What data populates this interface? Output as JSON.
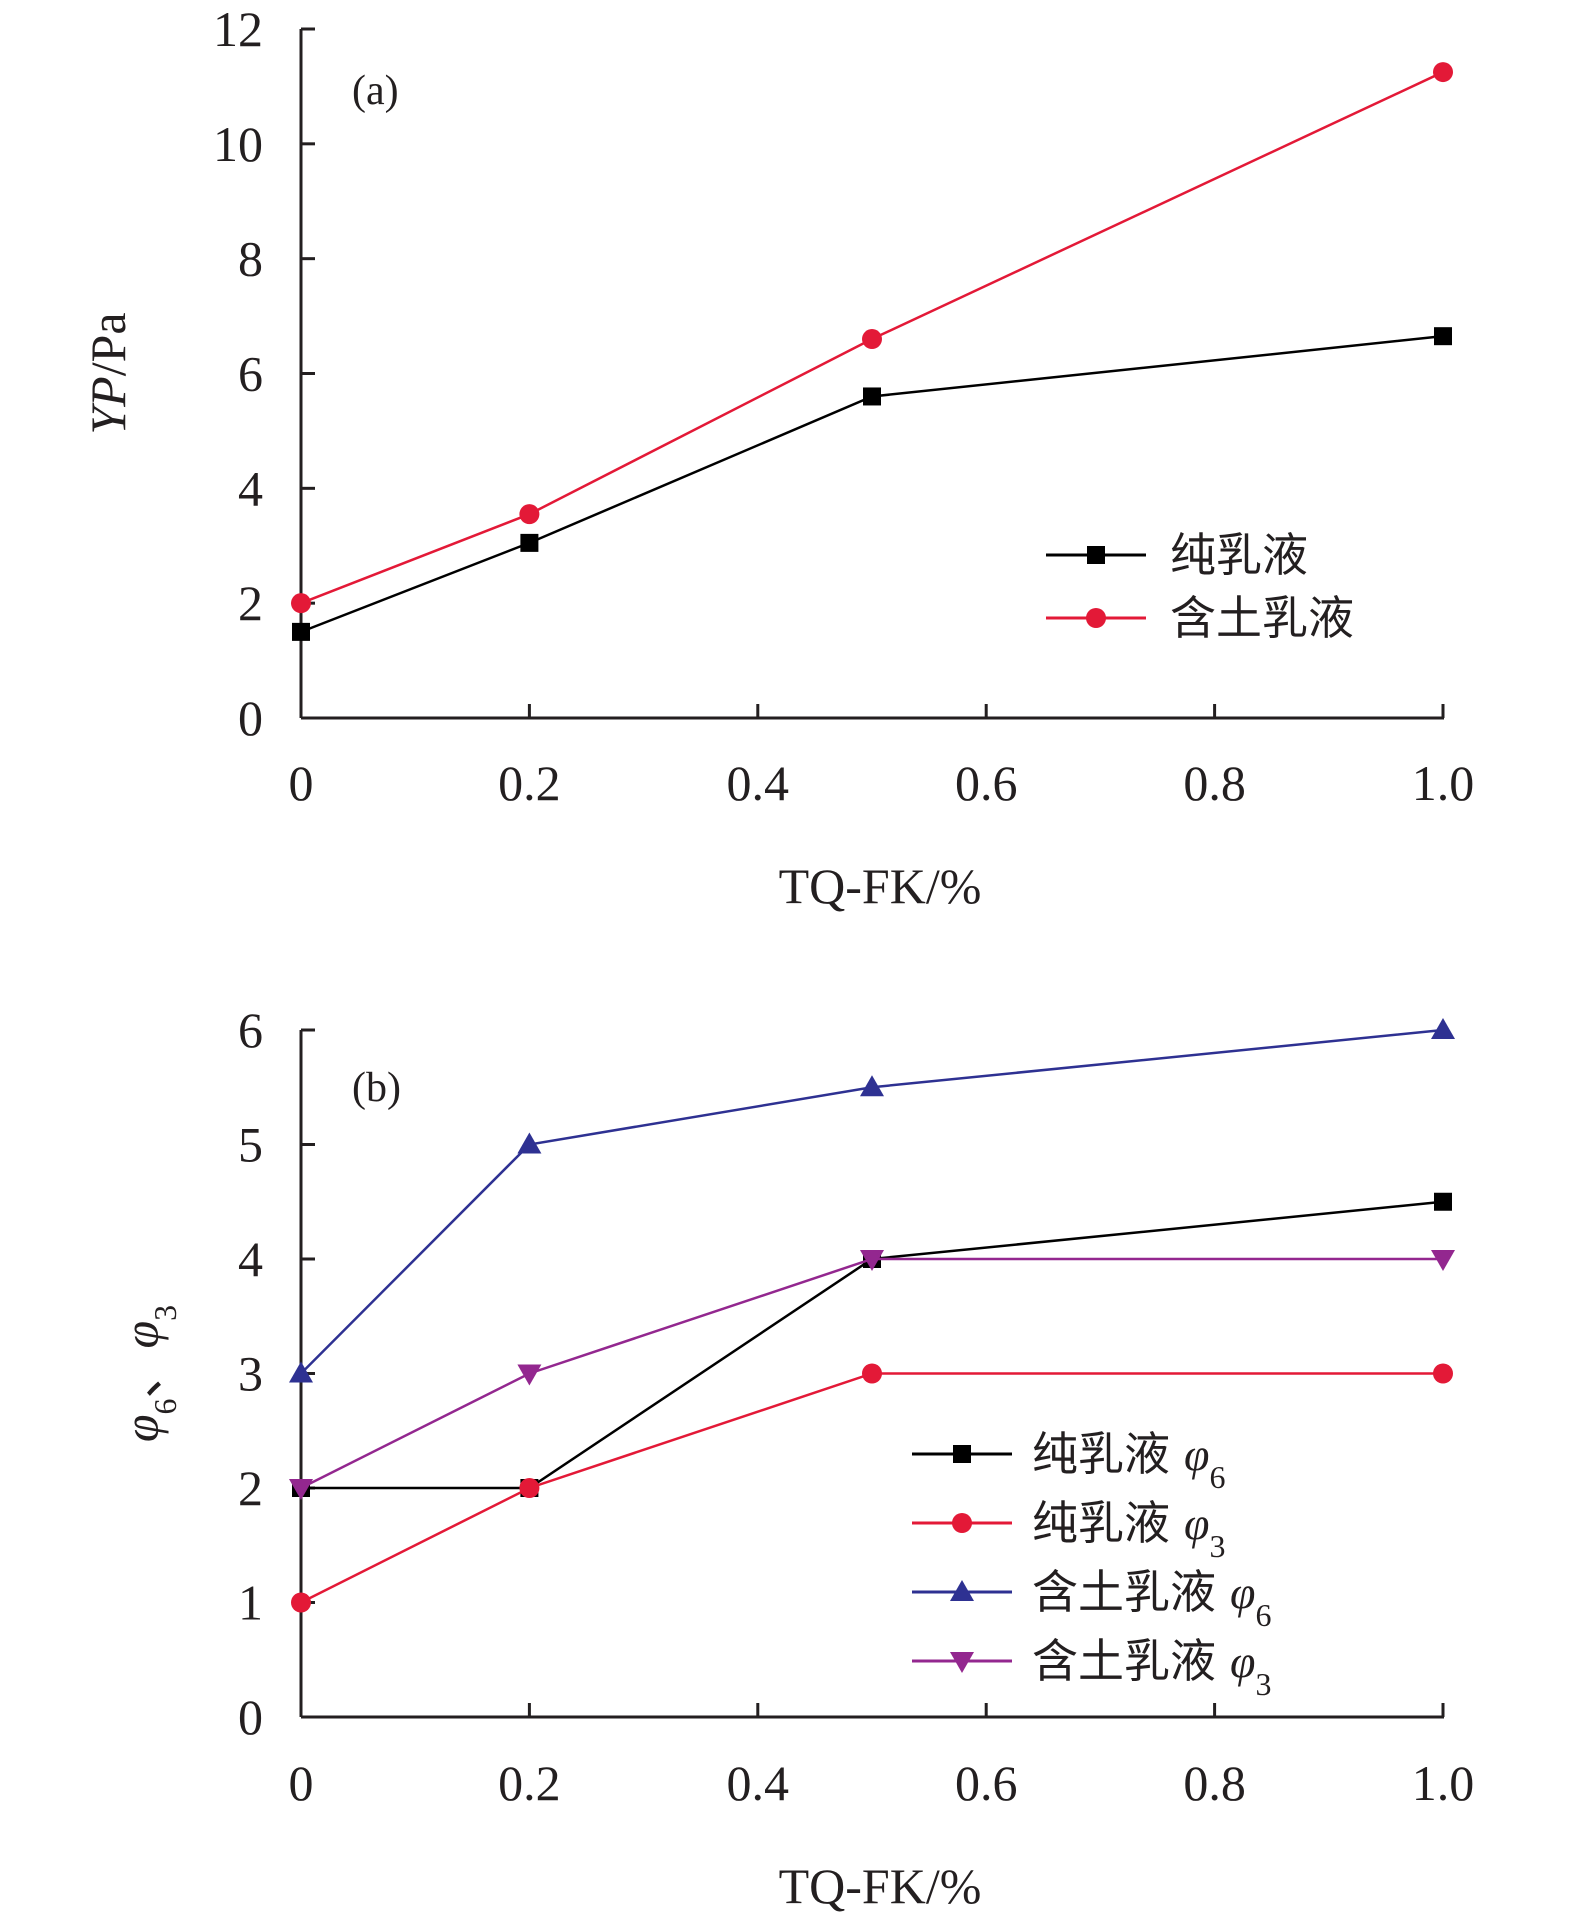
{
  "chart_data": [
    {
      "type": "line",
      "panel": "(a)",
      "xlabel": "TQ-FK/%",
      "ylabel": "YP/Pa",
      "ylabel_italic": "YP",
      "ylabel_unit": "/Pa",
      "xlim": [
        0,
        1.0
      ],
      "ylim": [
        0,
        12
      ],
      "xticks": [
        0,
        0.2,
        0.4,
        0.6,
        0.8,
        1.0
      ],
      "xtick_labels": [
        "0",
        "0.2",
        "0.4",
        "0.6",
        "0.8",
        "1.0"
      ],
      "yticks": [
        0,
        2,
        4,
        6,
        8,
        10,
        12
      ],
      "ytick_labels": [
        "0",
        "2",
        "4",
        "6",
        "8",
        "10",
        "12"
      ],
      "x": [
        0,
        0.2,
        0.5,
        1.0
      ],
      "grid": false,
      "legend_position": "center-right",
      "series": [
        {
          "name": "纯乳液",
          "name_main": "纯乳液",
          "name_sub": "",
          "color": "#000000",
          "marker": "square",
          "values": [
            1.5,
            3.05,
            5.6,
            6.65
          ]
        },
        {
          "name": "含土乳液",
          "name_main": "含土乳液",
          "name_sub": "",
          "color": "#e31937",
          "marker": "circle",
          "values": [
            2.0,
            3.55,
            6.6,
            11.25
          ]
        }
      ]
    },
    {
      "type": "line",
      "panel": "(b)",
      "xlabel": "TQ-FK/%",
      "ylabel": "φ6、φ3",
      "xlim": [
        0,
        1.0
      ],
      "ylim": [
        0,
        6
      ],
      "xticks": [
        0,
        0.2,
        0.4,
        0.6,
        0.8,
        1.0
      ],
      "xtick_labels": [
        "0",
        "0.2",
        "0.4",
        "0.6",
        "0.8",
        "1.0"
      ],
      "yticks": [
        0,
        1,
        2,
        3,
        4,
        5,
        6
      ],
      "ytick_labels": [
        "0",
        "1",
        "2",
        "3",
        "4",
        "5",
        "6"
      ],
      "x": [
        0,
        0.2,
        0.5,
        1.0
      ],
      "grid": false,
      "legend_position": "bottom-right",
      "series": [
        {
          "name": "纯乳液 φ6",
          "name_main": "纯乳液",
          "name_phi": "φ",
          "name_sub": "6",
          "color": "#000000",
          "marker": "square",
          "values": [
            2,
            2,
            4,
            4.5
          ]
        },
        {
          "name": "纯乳液 φ3",
          "name_main": "纯乳液",
          "name_phi": "φ",
          "name_sub": "3",
          "color": "#e31937",
          "marker": "circle",
          "values": [
            1,
            2,
            3,
            3
          ]
        },
        {
          "name": "含土乳液 φ6",
          "name_main": "含土乳液",
          "name_phi": "φ",
          "name_sub": "6",
          "color": "#2e3192",
          "marker": "triangle-up",
          "values": [
            3,
            5,
            5.5,
            6
          ]
        },
        {
          "name": "含土乳液 φ3",
          "name_main": "含土乳液",
          "name_phi": "φ",
          "name_sub": "3",
          "color": "#93278f",
          "marker": "triangle-down",
          "values": [
            2,
            3,
            4,
            4
          ]
        }
      ]
    }
  ]
}
